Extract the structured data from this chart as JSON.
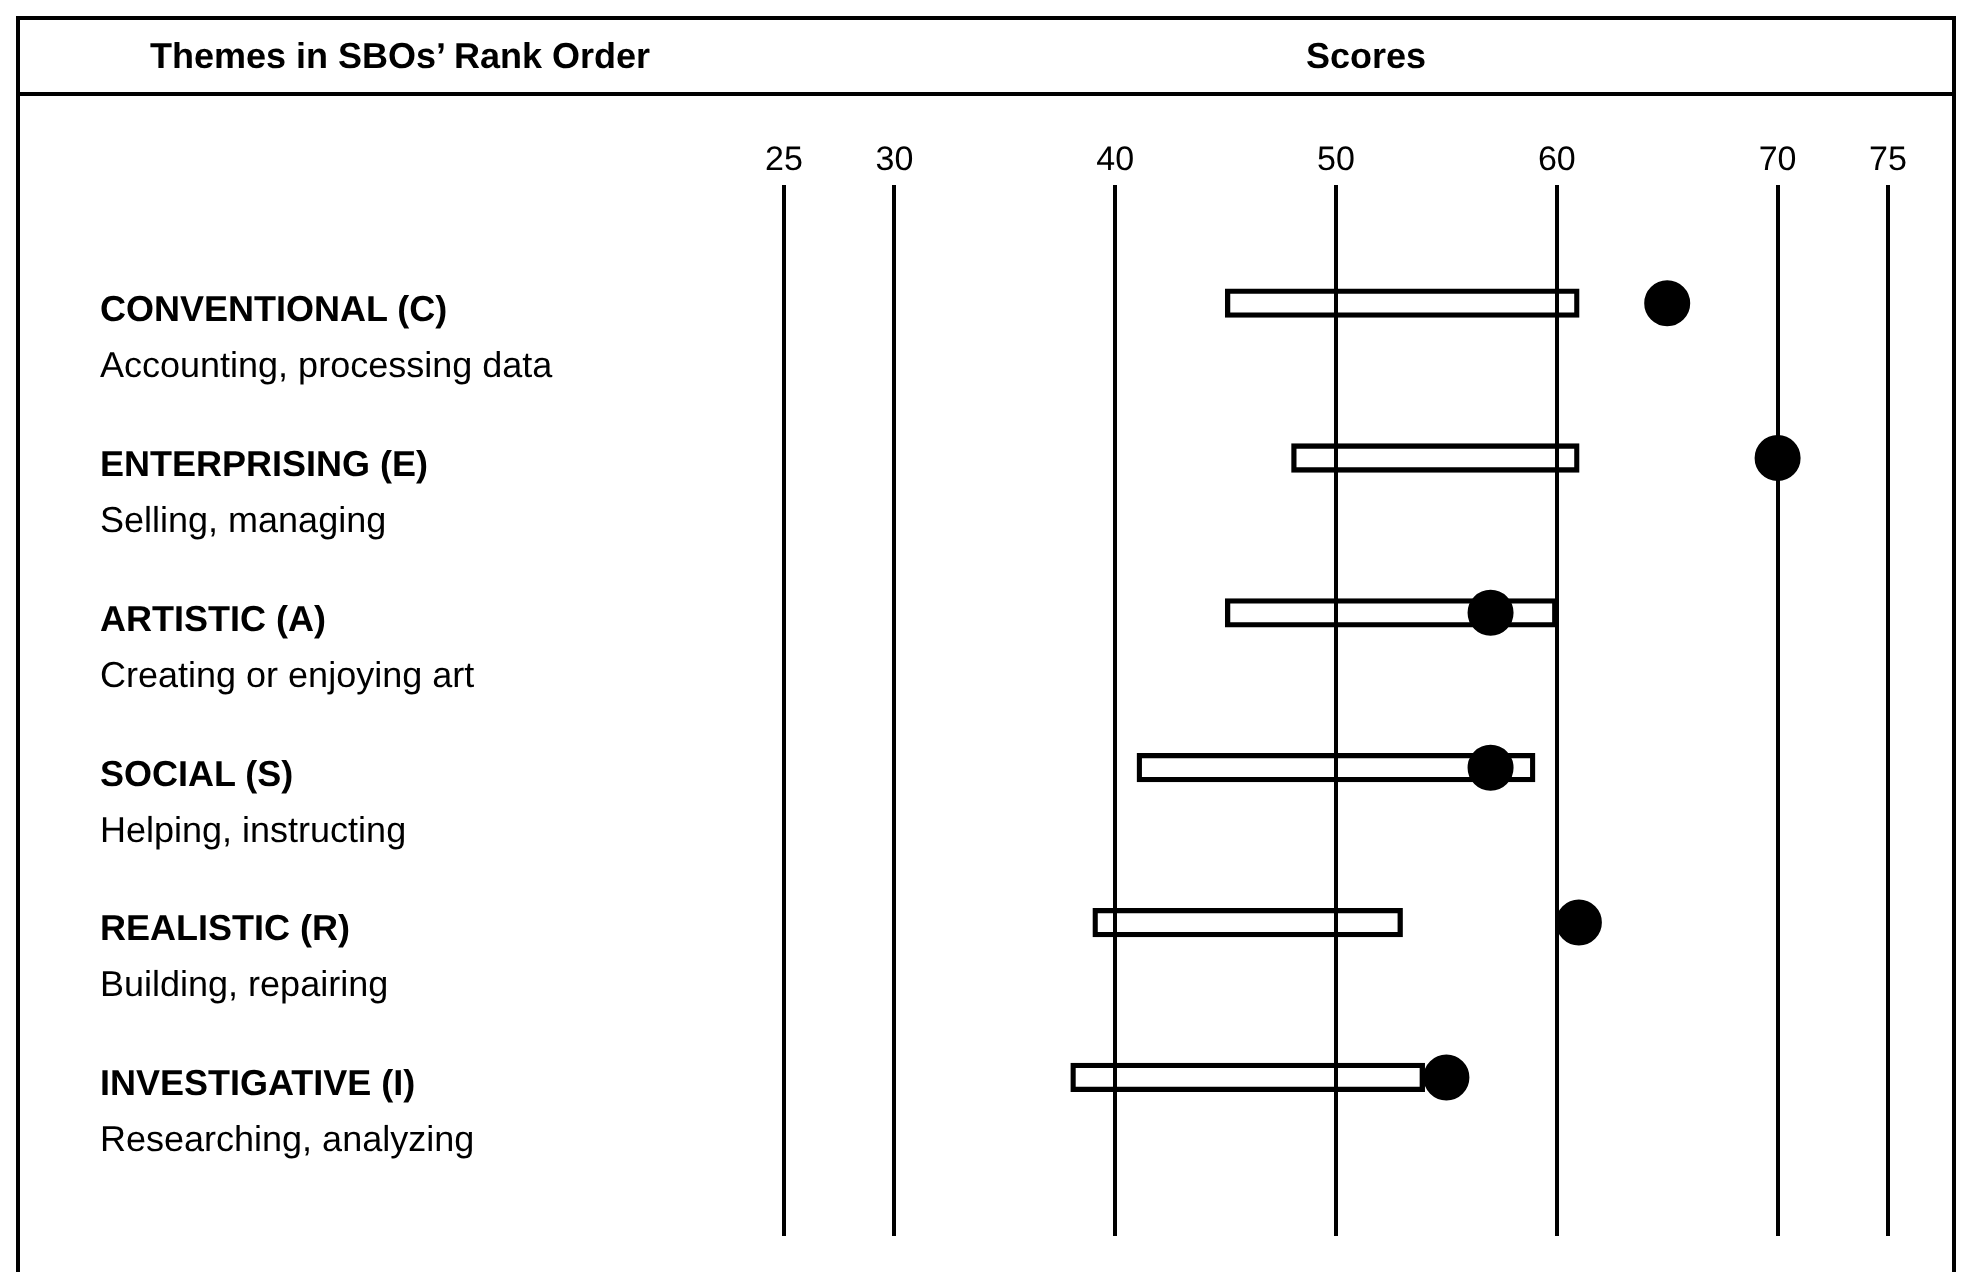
{
  "chart_data": {
    "type": "bar",
    "orientation": "horizontal",
    "xlabel": "Scores",
    "ylabel": "Themes in SBOs’ Rank Order",
    "categories": [
      "CONVENTIONAL (C)\nAccounting, processing data",
      "ENTERPRISING (E)\nSelling, managing",
      "ARTISTIC (A)\nCreating or enjoying art",
      "SOCIAL (S)\nHelping, instructing",
      "REALISTIC (R)\nBuilding, repairing",
      "INVESTIGATIVE (I)\nResearching, analyzing"
    ],
    "series": [
      {
        "color": "#000000",
        "base": [
          45,
          48,
          45,
          41,
          39,
          38
        ],
        "values": [
          16,
          13,
          15,
          18,
          14,
          16
        ]
      },
      {
        "type": "scatter",
        "color": "#000000",
        "marker": "circle",
        "values": [
          65,
          70,
          57,
          57,
          61,
          55
        ]
      }
    ],
    "xlim": [
      25,
      75
    ],
    "xticks": [
      25,
      30,
      40,
      50,
      60,
      70,
      75
    ],
    "grid": "x"
  }
}
